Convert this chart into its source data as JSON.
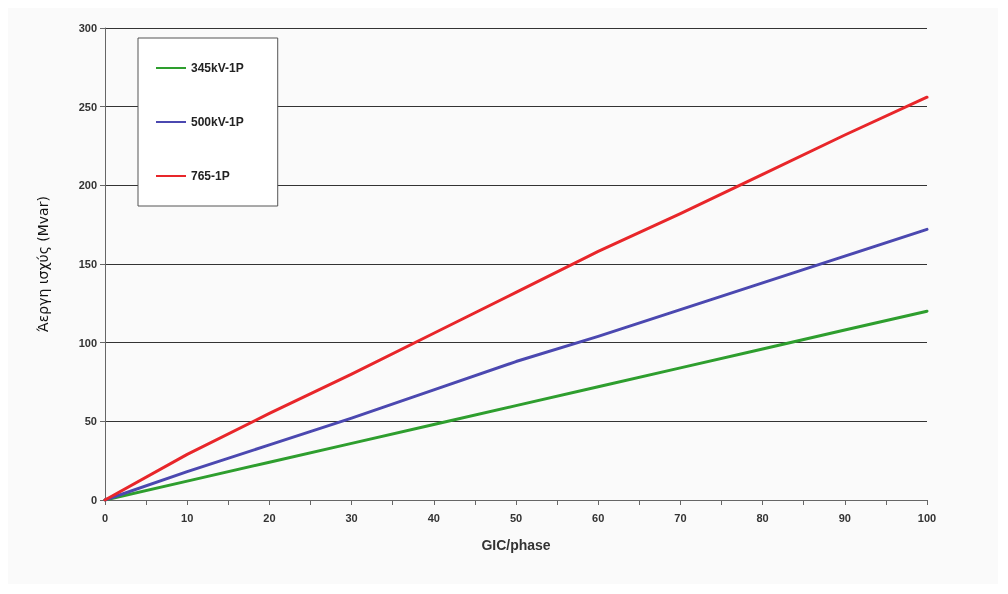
{
  "chart_data": {
    "type": "line",
    "xlabel": "GIC/phase",
    "ylabel": "Άεργη ισχύς (Mvar)",
    "x": [
      0,
      10,
      20,
      30,
      40,
      50,
      60,
      70,
      80,
      90,
      100
    ],
    "series": [
      {
        "name": "345kV-1P",
        "color": "#2e9e2e",
        "values": [
          0,
          12,
          24,
          36,
          48,
          60,
          72,
          84,
          96,
          108,
          120
        ]
      },
      {
        "name": "500kV-1P",
        "color": "#4b48b0",
        "values": [
          0,
          18,
          35,
          52,
          70,
          88,
          104,
          121,
          138,
          155,
          172
        ]
      },
      {
        "name": "765-1P",
        "color": "#e8262a",
        "values": [
          0,
          29,
          55,
          80,
          106,
          132,
          158,
          182,
          207,
          232,
          256
        ]
      }
    ],
    "xlim": [
      0,
      100
    ],
    "xticks": [
      0,
      10,
      20,
      30,
      40,
      50,
      60,
      70,
      80,
      90,
      100
    ],
    "ylim": [
      0,
      300
    ],
    "yticks": [
      0,
      50,
      100,
      150,
      200,
      250,
      300
    ],
    "grid": "y",
    "legend": "top left",
    "marker": "none",
    "line_style": "solid"
  }
}
